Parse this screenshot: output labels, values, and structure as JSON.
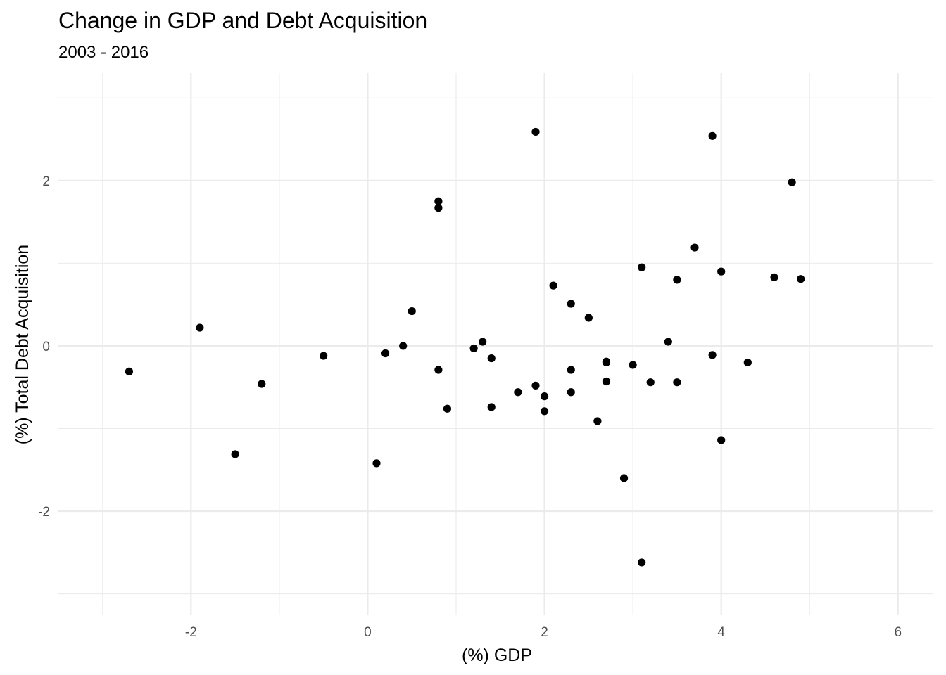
{
  "chart_data": {
    "type": "scatter",
    "title": "Change in GDP and Debt Acquisition",
    "subtitle": "2003 - 2016",
    "xlabel": "(%) GDP",
    "ylabel": "(%) Total Debt Acquisition",
    "xlim": [
      -3.5,
      6.4
    ],
    "ylim": [
      -3.25,
      3.3
    ],
    "x_major_ticks": [
      -2,
      0,
      2,
      4,
      6
    ],
    "x_minor_ticks": [
      -3,
      -1,
      1,
      3,
      5
    ],
    "y_major_ticks": [
      -2,
      0,
      2
    ],
    "y_minor_ticks": [
      -3,
      -1,
      1,
      3
    ],
    "x_tick_labels": [
      "-2",
      "0",
      "2",
      "4",
      "6"
    ],
    "y_tick_labels": [
      "-2",
      "0",
      "2"
    ],
    "grid": true,
    "point_color": "#000000",
    "points": [
      {
        "x": -2.7,
        "y": -0.31
      },
      {
        "x": -1.9,
        "y": 0.22
      },
      {
        "x": -1.5,
        "y": -1.31
      },
      {
        "x": -1.2,
        "y": -0.46
      },
      {
        "x": -0.5,
        "y": -0.12
      },
      {
        "x": 0.1,
        "y": -1.42
      },
      {
        "x": 0.2,
        "y": -0.09
      },
      {
        "x": 0.4,
        "y": 0.0
      },
      {
        "x": 0.5,
        "y": 0.42
      },
      {
        "x": 0.8,
        "y": 1.75
      },
      {
        "x": 0.8,
        "y": 1.67
      },
      {
        "x": 0.8,
        "y": -0.29
      },
      {
        "x": 0.9,
        "y": -0.76
      },
      {
        "x": 1.2,
        "y": -0.03
      },
      {
        "x": 1.3,
        "y": 0.05
      },
      {
        "x": 1.4,
        "y": -0.15
      },
      {
        "x": 1.4,
        "y": -0.74
      },
      {
        "x": 1.7,
        "y": -0.56
      },
      {
        "x": 1.9,
        "y": 2.59
      },
      {
        "x": 1.9,
        "y": -0.48
      },
      {
        "x": 2.0,
        "y": -0.61
      },
      {
        "x": 2.0,
        "y": -0.79
      },
      {
        "x": 2.1,
        "y": 0.73
      },
      {
        "x": 2.3,
        "y": 0.51
      },
      {
        "x": 2.3,
        "y": -0.29
      },
      {
        "x": 2.3,
        "y": -0.56
      },
      {
        "x": 2.5,
        "y": 0.34
      },
      {
        "x": 2.6,
        "y": -0.91
      },
      {
        "x": 2.7,
        "y": -0.19
      },
      {
        "x": 2.7,
        "y": -0.2
      },
      {
        "x": 2.7,
        "y": -0.43
      },
      {
        "x": 2.9,
        "y": -1.6
      },
      {
        "x": 3.0,
        "y": -0.23
      },
      {
        "x": 3.1,
        "y": 0.95
      },
      {
        "x": 3.1,
        "y": -2.62
      },
      {
        "x": 3.2,
        "y": -0.44
      },
      {
        "x": 3.4,
        "y": 0.05
      },
      {
        "x": 3.5,
        "y": 0.8
      },
      {
        "x": 3.5,
        "y": -0.44
      },
      {
        "x": 3.7,
        "y": 1.19
      },
      {
        "x": 3.9,
        "y": 2.54
      },
      {
        "x": 3.9,
        "y": -0.11
      },
      {
        "x": 4.0,
        "y": 0.9
      },
      {
        "x": 4.0,
        "y": -1.14
      },
      {
        "x": 4.3,
        "y": -0.2
      },
      {
        "x": 4.6,
        "y": 0.83
      },
      {
        "x": 4.8,
        "y": 1.98
      },
      {
        "x": 4.9,
        "y": 0.81
      }
    ]
  }
}
